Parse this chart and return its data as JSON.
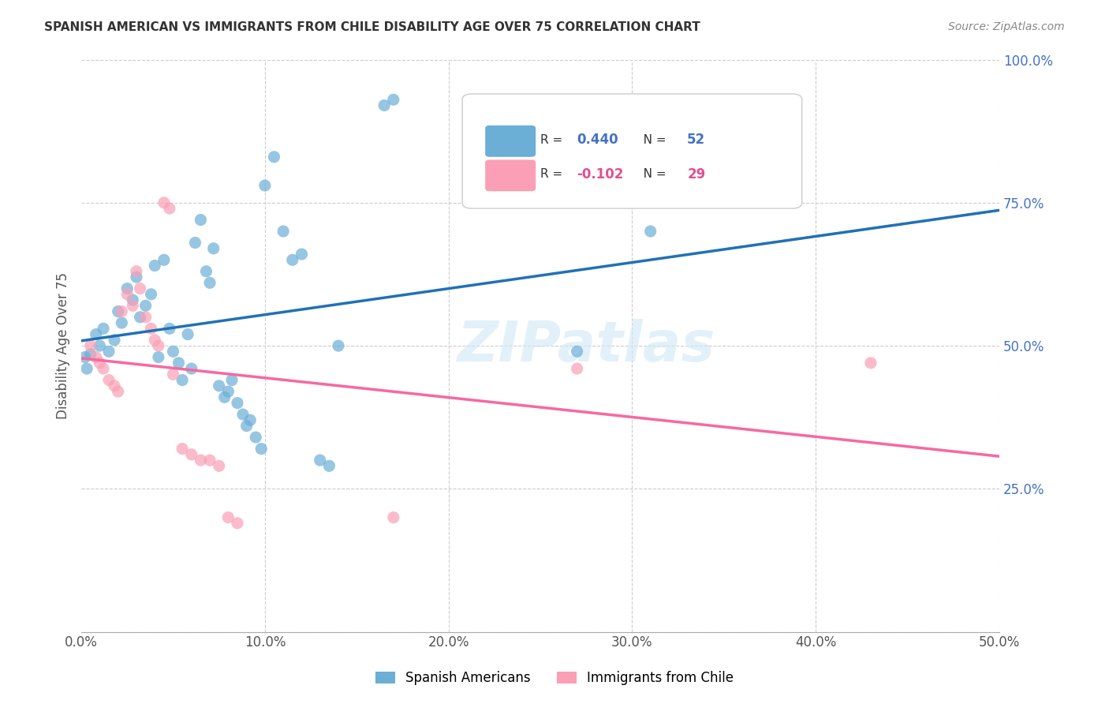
{
  "title": "SPANISH AMERICAN VS IMMIGRANTS FROM CHILE DISABILITY AGE OVER 75 CORRELATION CHART",
  "source": "Source: ZipAtlas.com",
  "xlabel": "",
  "ylabel": "Disability Age Over 75",
  "xlim": [
    0,
    0.5
  ],
  "ylim": [
    0,
    1.0
  ],
  "xtick_labels": [
    "0.0%",
    "10.0%",
    "20.0%",
    "30.0%",
    "40.0%",
    "50.0%"
  ],
  "xtick_vals": [
    0,
    0.1,
    0.2,
    0.3,
    0.4,
    0.5
  ],
  "ytick_labels": [
    "25.0%",
    "50.0%",
    "75.0%",
    "100.0%"
  ],
  "ytick_vals": [
    0.25,
    0.5,
    0.75,
    1.0
  ],
  "r_blue": 0.44,
  "n_blue": 52,
  "r_pink": -0.102,
  "n_pink": 29,
  "watermark": "ZIPatlas",
  "blue_color": "#6baed6",
  "pink_color": "#fa9fb5",
  "blue_line_color": "#2171b5",
  "pink_line_color": "#f768a1",
  "blue_scatter": [
    [
      0.005,
      0.485
    ],
    [
      0.008,
      0.52
    ],
    [
      0.01,
      0.5
    ],
    [
      0.012,
      0.53
    ],
    [
      0.015,
      0.49
    ],
    [
      0.018,
      0.51
    ],
    [
      0.02,
      0.56
    ],
    [
      0.022,
      0.54
    ],
    [
      0.025,
      0.6
    ],
    [
      0.028,
      0.58
    ],
    [
      0.03,
      0.62
    ],
    [
      0.032,
      0.55
    ],
    [
      0.035,
      0.57
    ],
    [
      0.038,
      0.59
    ],
    [
      0.04,
      0.64
    ],
    [
      0.042,
      0.48
    ],
    [
      0.045,
      0.65
    ],
    [
      0.048,
      0.53
    ],
    [
      0.05,
      0.49
    ],
    [
      0.053,
      0.47
    ],
    [
      0.055,
      0.44
    ],
    [
      0.058,
      0.52
    ],
    [
      0.06,
      0.46
    ],
    [
      0.062,
      0.68
    ],
    [
      0.065,
      0.72
    ],
    [
      0.068,
      0.63
    ],
    [
      0.07,
      0.61
    ],
    [
      0.072,
      0.67
    ],
    [
      0.075,
      0.43
    ],
    [
      0.078,
      0.41
    ],
    [
      0.08,
      0.42
    ],
    [
      0.082,
      0.44
    ],
    [
      0.085,
      0.4
    ],
    [
      0.088,
      0.38
    ],
    [
      0.09,
      0.36
    ],
    [
      0.092,
      0.37
    ],
    [
      0.095,
      0.34
    ],
    [
      0.098,
      0.32
    ],
    [
      0.1,
      0.78
    ],
    [
      0.105,
      0.83
    ],
    [
      0.11,
      0.7
    ],
    [
      0.115,
      0.65
    ],
    [
      0.12,
      0.66
    ],
    [
      0.13,
      0.3
    ],
    [
      0.135,
      0.29
    ],
    [
      0.14,
      0.5
    ],
    [
      0.165,
      0.92
    ],
    [
      0.17,
      0.93
    ],
    [
      0.27,
      0.49
    ],
    [
      0.31,
      0.7
    ],
    [
      0.002,
      0.48
    ],
    [
      0.003,
      0.46
    ]
  ],
  "pink_scatter": [
    [
      0.005,
      0.5
    ],
    [
      0.008,
      0.48
    ],
    [
      0.01,
      0.47
    ],
    [
      0.012,
      0.46
    ],
    [
      0.015,
      0.44
    ],
    [
      0.018,
      0.43
    ],
    [
      0.02,
      0.42
    ],
    [
      0.022,
      0.56
    ],
    [
      0.025,
      0.59
    ],
    [
      0.028,
      0.57
    ],
    [
      0.03,
      0.63
    ],
    [
      0.032,
      0.6
    ],
    [
      0.035,
      0.55
    ],
    [
      0.038,
      0.53
    ],
    [
      0.04,
      0.51
    ],
    [
      0.042,
      0.5
    ],
    [
      0.045,
      0.75
    ],
    [
      0.048,
      0.74
    ],
    [
      0.05,
      0.45
    ],
    [
      0.055,
      0.32
    ],
    [
      0.06,
      0.31
    ],
    [
      0.065,
      0.3
    ],
    [
      0.07,
      0.3
    ],
    [
      0.075,
      0.29
    ],
    [
      0.08,
      0.2
    ],
    [
      0.085,
      0.19
    ],
    [
      0.17,
      0.2
    ],
    [
      0.27,
      0.46
    ],
    [
      0.43,
      0.47
    ]
  ]
}
